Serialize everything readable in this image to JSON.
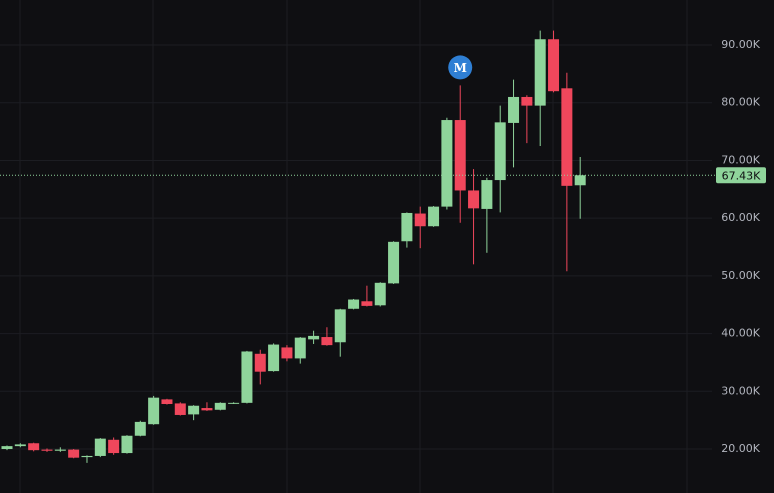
{
  "chart_data": {
    "type": "candlestick",
    "ylim": [
      12380,
      97800
    ],
    "yticks": [
      {
        "value": 20000,
        "label": "20.00K"
      },
      {
        "value": 30000,
        "label": "30.00K"
      },
      {
        "value": 40000,
        "label": "40.00K"
      },
      {
        "value": 50000,
        "label": "50.00K"
      },
      {
        "value": 60000,
        "label": "60.00K"
      },
      {
        "value": 70000,
        "label": "70.00K"
      },
      {
        "value": 80000,
        "label": "80.00K"
      },
      {
        "value": 90000,
        "label": "90.00K"
      }
    ],
    "grid": true,
    "up_color": "#8fd49b",
    "down_color": "#f0475c",
    "last_price": {
      "value": 67430,
      "label": "67.43K"
    },
    "marker": {
      "label": "M",
      "index": 34,
      "color": "#2f7fd4"
    },
    "open": [
      20000,
      20500,
      21000,
      19900,
      19700,
      19900,
      18600,
      18800,
      21600,
      19300,
      22300,
      24300,
      28600,
      27900,
      26000,
      27100,
      26800,
      27900,
      28000,
      36500,
      33500,
      37600,
      35700,
      39000,
      39400,
      38500,
      44300,
      45600,
      44900,
      48700,
      56000,
      60800,
      58600,
      62000,
      77000,
      64800,
      61600,
      66600,
      76500,
      81000,
      79500,
      91000,
      82500,
      65700
    ],
    "high": [
      20600,
      21000,
      21100,
      20100,
      20300,
      20000,
      18900,
      21900,
      22000,
      22400,
      24900,
      29200,
      28700,
      28100,
      27600,
      28100,
      28100,
      28100,
      37000,
      37200,
      38300,
      38000,
      39400,
      40500,
      41100,
      44300,
      46000,
      48300,
      48900,
      56000,
      61000,
      62000,
      62100,
      77400,
      83000,
      68500,
      67000,
      79500,
      84000,
      81300,
      92500,
      92500,
      85200,
      70600
    ],
    "low": [
      19800,
      20300,
      19600,
      19500,
      19500,
      18400,
      17600,
      18600,
      19000,
      19200,
      22200,
      24200,
      27700,
      25800,
      25000,
      26600,
      26700,
      27800,
      27900,
      31200,
      33400,
      35200,
      34800,
      38200,
      37900,
      36000,
      44200,
      44700,
      44700,
      48600,
      54900,
      54800,
      58500,
      61500,
      59200,
      52000,
      54000,
      61000,
      68800,
      73000,
      72500,
      81800,
      50800,
      59900
    ],
    "close": [
      20500,
      20800,
      19800,
      19700,
      19900,
      18500,
      18800,
      21800,
      19300,
      22300,
      24700,
      28900,
      27800,
      25900,
      27500,
      26700,
      28000,
      28000,
      36900,
      33400,
      38100,
      35700,
      39300,
      39600,
      38000,
      44200,
      45900,
      44800,
      48800,
      55900,
      60900,
      58600,
      62000,
      77000,
      64800,
      61700,
      66600,
      76600,
      81000,
      79500,
      91000,
      82000,
      65600,
      67430
    ]
  }
}
